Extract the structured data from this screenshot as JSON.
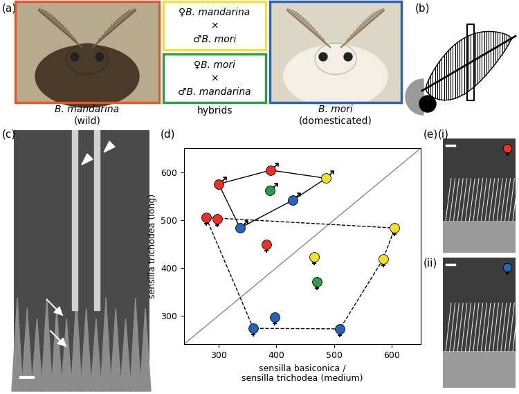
{
  "panel_a": {
    "label": "(a)",
    "photos": [
      {
        "species": "B. mandarina",
        "caption": "(wild)",
        "color": "#e8562a"
      },
      {
        "species": "B. mori",
        "caption": "(domesticated)",
        "color": "#2a62b8"
      }
    ],
    "hybrids": {
      "caption": "hybrids",
      "crosses": [
        {
          "lines": [
            "♀B. mandarina",
            "×",
            "♂B. mori"
          ],
          "color": "#f0e040"
        },
        {
          "lines": [
            "♀B. mori",
            "×",
            "♂B. mandarina"
          ],
          "color": "#2f9a4a"
        }
      ]
    }
  },
  "panel_b": {
    "label": "(b)"
  },
  "panel_c": {
    "label": "(c)"
  },
  "panel_e": {
    "label": "(e)",
    "images": [
      {
        "label": "(i)",
        "color": "#e8312a"
      },
      {
        "label": "(ii)",
        "color": "#2a62b8"
      }
    ]
  },
  "chart_data": {
    "type": "scatter",
    "label": "(d)",
    "x_label": "sensilla basiconica /\nsensilla trichodea (medium)",
    "y_label": "sensilla trichodea (long)",
    "xlim": [
      240,
      650
    ],
    "ylim": [
      240,
      650
    ],
    "xticks": [
      300,
      400,
      500,
      600
    ],
    "yticks": [
      300,
      400,
      500,
      600
    ],
    "groups": [
      {
        "color": "#e8312a",
        "male": {
          "x": [
            300,
            390
          ],
          "y": [
            575,
            604
          ]
        },
        "female": {
          "x": [
            278,
            297,
            383
          ],
          "y": [
            505,
            502,
            449
          ]
        }
      },
      {
        "color": "#2a62b8",
        "male": {
          "x": [
            428,
            337
          ],
          "y": [
            541,
            483
          ]
        },
        "female": {
          "x": [
            360,
            397,
            510
          ],
          "y": [
            273,
            297,
            272
          ]
        }
      },
      {
        "color": "#f2e22e",
        "male": {
          "x": [
            486
          ],
          "y": [
            587
          ]
        },
        "female": {
          "x": [
            605,
            585,
            465
          ],
          "y": [
            483,
            418,
            422
          ]
        }
      },
      {
        "color": "#2f9a4a",
        "male": {
          "x": [
            389
          ],
          "y": [
            562
          ]
        },
        "female": {
          "x": [
            470
          ],
          "y": [
            370
          ]
        }
      }
    ]
  }
}
